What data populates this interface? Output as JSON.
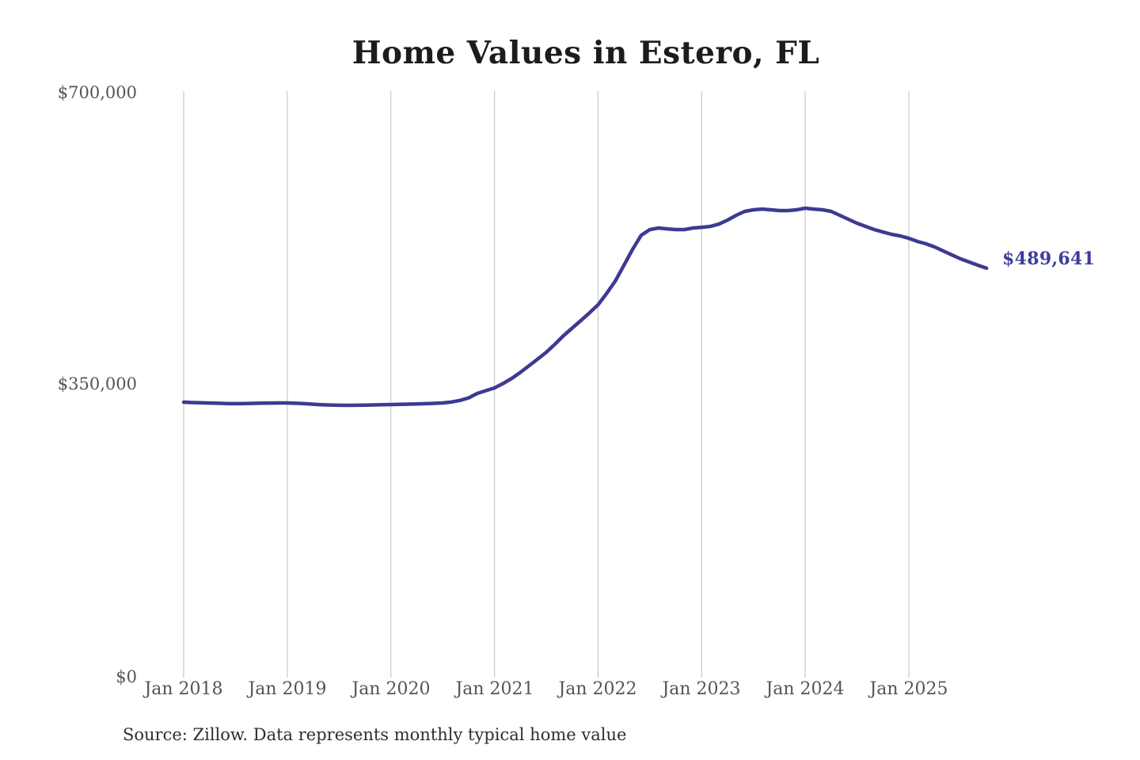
{
  "title": "Home Values in Estero, FL",
  "source_note": "Source: Zillow. Data represents monthly typical home value",
  "value_annotation": "$489,641",
  "colors": {
    "line": "#3d3a92",
    "value_label": "#3e3d99",
    "grid": "#c9c9c9",
    "axis_text": "#555555",
    "title_text": "#1c1c1c",
    "source_text": "#2e2e2e",
    "background": "#ffffff"
  },
  "y_axis": {
    "ticks": [
      "$700,000",
      "$350,000",
      "$0"
    ],
    "tick_values": [
      700000,
      350000,
      0
    ]
  },
  "x_axis": {
    "ticks": [
      "Jan 2018",
      "Jan 2019",
      "Jan 2020",
      "Jan 2021",
      "Jan 2022",
      "Jan 2023",
      "Jan 2024",
      "Jan 2025"
    ]
  },
  "chart_data": {
    "type": "line",
    "title": "Home Values in Estero, FL",
    "xlabel": "",
    "ylabel": "",
    "ylim": [
      0,
      700000
    ],
    "y_tick_values": [
      0,
      350000,
      700000
    ],
    "x_tick_labels": [
      "Jan 2018",
      "Jan 2019",
      "Jan 2020",
      "Jan 2021",
      "Jan 2022",
      "Jan 2023",
      "Jan 2024",
      "Jan 2025"
    ],
    "grid": "vertical-yearly",
    "legend": "none",
    "annotation": {
      "text": "$489,641",
      "attach": "last-point"
    },
    "series": [
      {
        "name": "Monthly typical home value",
        "x": [
          "2018-01",
          "2018-02",
          "2018-03",
          "2018-04",
          "2018-05",
          "2018-06",
          "2018-07",
          "2018-08",
          "2018-09",
          "2018-10",
          "2018-11",
          "2018-12",
          "2019-01",
          "2019-02",
          "2019-03",
          "2019-04",
          "2019-05",
          "2019-06",
          "2019-07",
          "2019-08",
          "2019-09",
          "2019-10",
          "2019-11",
          "2019-12",
          "2020-01",
          "2020-02",
          "2020-03",
          "2020-04",
          "2020-05",
          "2020-06",
          "2020-07",
          "2020-08",
          "2020-09",
          "2020-10",
          "2020-11",
          "2020-12",
          "2021-01",
          "2021-02",
          "2021-03",
          "2021-04",
          "2021-05",
          "2021-06",
          "2021-07",
          "2021-08",
          "2021-09",
          "2021-10",
          "2021-11",
          "2021-12",
          "2022-01",
          "2022-02",
          "2022-03",
          "2022-04",
          "2022-05",
          "2022-06",
          "2022-07",
          "2022-08",
          "2022-09",
          "2022-10",
          "2022-11",
          "2022-12",
          "2023-01",
          "2023-02",
          "2023-03",
          "2023-04",
          "2023-05",
          "2023-06",
          "2023-07",
          "2023-08",
          "2023-09",
          "2023-10",
          "2023-11",
          "2023-12",
          "2024-01",
          "2024-02",
          "2024-03",
          "2024-04",
          "2024-05",
          "2024-06",
          "2024-07",
          "2024-08",
          "2024-09",
          "2024-10",
          "2024-11",
          "2024-12",
          "2025-01",
          "2025-02",
          "2025-03",
          "2025-04",
          "2025-05",
          "2025-06",
          "2025-07",
          "2025-08",
          "2025-09",
          "2025-10"
        ],
        "y": [
          329100,
          328700,
          328400,
          328100,
          327800,
          327500,
          327300,
          327400,
          327700,
          327900,
          328100,
          328200,
          328200,
          327800,
          327300,
          326700,
          326100,
          325700,
          325400,
          325300,
          325400,
          325600,
          325800,
          326100,
          326300,
          326500,
          326800,
          327000,
          327300,
          327700,
          328200,
          329300,
          331200,
          334300,
          339600,
          342900,
          346200,
          351500,
          357600,
          364800,
          372800,
          380700,
          388900,
          398500,
          408800,
          417800,
          426800,
          436000,
          445800,
          459500,
          474300,
          493000,
          512200,
          529200,
          535900,
          537800,
          536800,
          535900,
          535900,
          537800,
          538700,
          539700,
          542500,
          547300,
          553000,
          557700,
          559600,
          560500,
          559600,
          558700,
          558700,
          559600,
          561500,
          560500,
          559600,
          557700,
          553000,
          548200,
          543500,
          539700,
          535900,
          533000,
          530200,
          528300,
          525500,
          521700,
          518800,
          515000,
          510300,
          505500,
          500800,
          497000,
          493200,
          489641
        ]
      }
    ]
  }
}
